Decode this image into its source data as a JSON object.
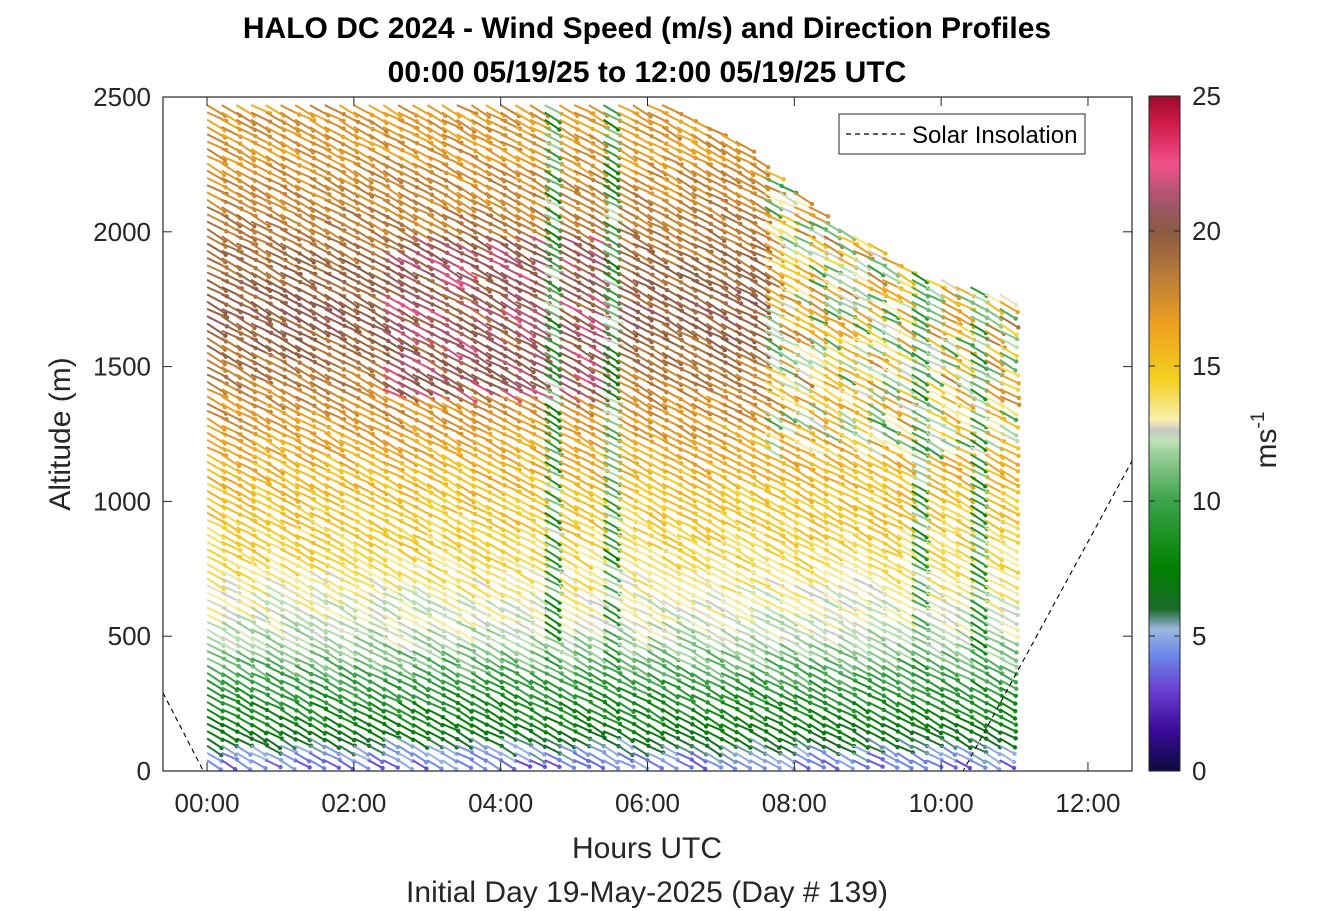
{
  "chart_data": {
    "type": "quiver",
    "title_line1": "HALO DC 2024 - Wind Speed (m/s) and Direction Profiles",
    "title_line2": "00:00 05/19/25 to 12:00 05/19/25  UTC",
    "xlabel": "Hours UTC",
    "xlabel2": "Initial Day 19-May-2025 (Day # 139)",
    "ylabel": "Altitude (m)",
    "xlim_hours": [
      -0.6,
      12.6
    ],
    "ylim": [
      0,
      2500
    ],
    "x_ticks": [
      {
        "value": 0,
        "label": "00:00"
      },
      {
        "value": 2,
        "label": "02:00"
      },
      {
        "value": 4,
        "label": "04:00"
      },
      {
        "value": 6,
        "label": "06:00"
      },
      {
        "value": 8,
        "label": "08:00"
      },
      {
        "value": 10,
        "label": "10:00"
      },
      {
        "value": 12,
        "label": "12:00"
      }
    ],
    "y_ticks": [
      {
        "value": 0,
        "label": "0"
      },
      {
        "value": 500,
        "label": "500"
      },
      {
        "value": 1000,
        "label": "1000"
      },
      {
        "value": 1500,
        "label": "1500"
      },
      {
        "value": 2000,
        "label": "2000"
      },
      {
        "value": 2500,
        "label": "2500"
      }
    ],
    "colorbar": {
      "label": "ms",
      "label_superscript": "-1",
      "range": [
        0,
        25
      ],
      "ticks": [
        {
          "value": 0,
          "label": "0"
        },
        {
          "value": 5,
          "label": "5"
        },
        {
          "value": 10,
          "label": "10"
        },
        {
          "value": 15,
          "label": "15"
        },
        {
          "value": 20,
          "label": "20"
        },
        {
          "value": 25,
          "label": "25"
        }
      ]
    },
    "legend": {
      "entries": [
        {
          "name": "Solar Insolation",
          "style": "dashed",
          "color": "#000000"
        }
      ],
      "placement": "top-right"
    },
    "solar_insolation": {
      "x": [
        -0.6,
        -0.05,
        10.3,
        12.6
      ],
      "y": [
        290,
        0,
        0,
        1150
      ]
    },
    "profile_times": {
      "start": 0.0,
      "end": 10.8,
      "step": 0.2
    },
    "altitude_levels": {
      "start": 40,
      "end": 2470,
      "step": 27
    },
    "top_altitude_by_time": [
      {
        "t": 0.0,
        "top": 2470
      },
      {
        "t": 6.4,
        "top": 2470
      },
      {
        "t": 7.2,
        "top": 2350
      },
      {
        "t": 8.2,
        "top": 2100
      },
      {
        "t": 9.6,
        "top": 1850
      },
      {
        "t": 10.8,
        "top": 1780
      }
    ],
    "speed_field": {
      "description_levels": [
        {
          "alt": 40,
          "speed": 4
        },
        {
          "alt": 80,
          "speed": 4.8
        },
        {
          "alt": 150,
          "speed": 7
        },
        {
          "alt": 300,
          "speed": 9
        },
        {
          "alt": 500,
          "speed": 12
        },
        {
          "alt": 800,
          "speed": 14
        },
        {
          "alt": 1200,
          "speed": 16
        },
        {
          "alt": 1700,
          "speed": 20
        },
        {
          "alt": 2300,
          "speed": 17
        }
      ],
      "slow_columns_hours": [
        4.6,
        5.4,
        9.6,
        10.4
      ],
      "fast_core": {
        "t_range": [
          2.4,
          5.4
        ],
        "alt_range": [
          1400,
          2000
        ],
        "speed": 22
      }
    },
    "wind_direction_deg": 300
  }
}
